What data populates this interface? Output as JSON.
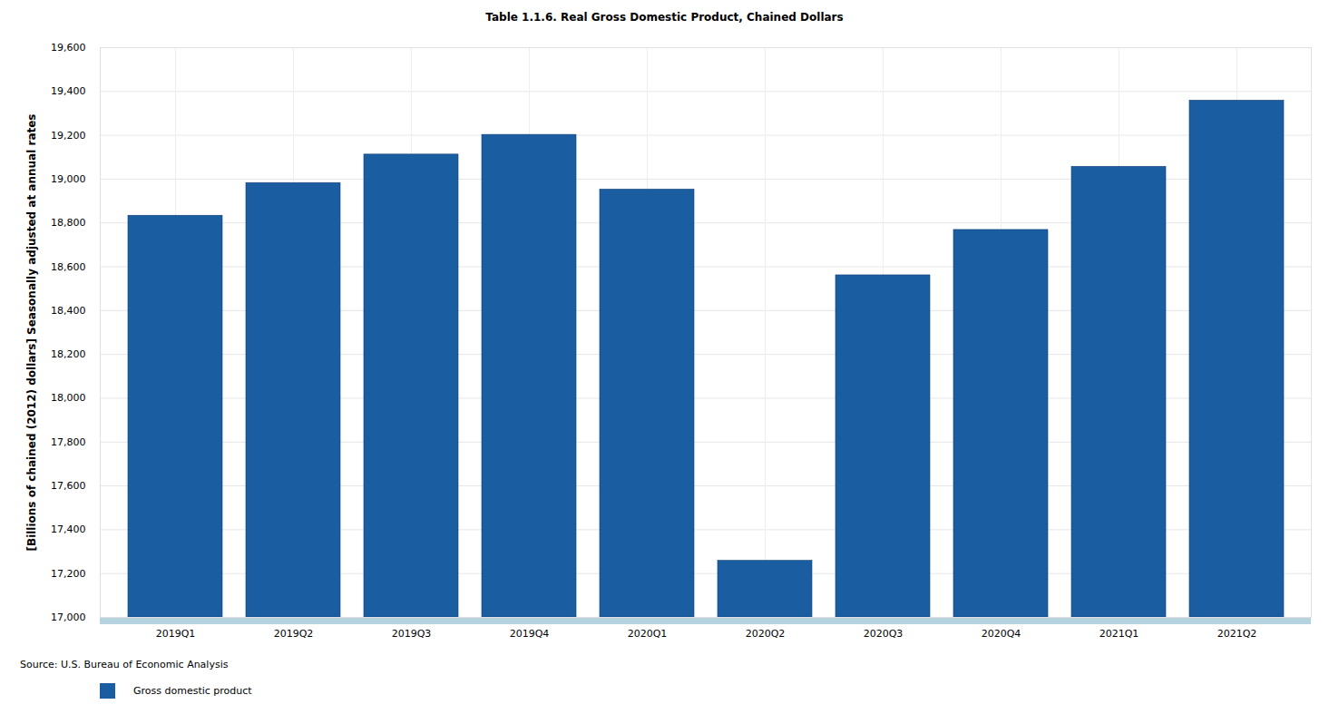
{
  "chart_data": {
    "type": "bar",
    "title": "Table 1.1.6. Real Gross Domestic Product, Chained Dollars",
    "y_label": "[Billions of chained (2012) dollars] Seasonally adjusted at annual rates",
    "source": "Source: U.S. Bureau of Economic Analysis",
    "categories": [
      "2019Q1",
      "2019Q2",
      "2019Q3",
      "2019Q4",
      "2020Q1",
      "2020Q2",
      "2020Q3",
      "2020Q4",
      "2021Q1",
      "2021Q2"
    ],
    "series": [
      {
        "name": "Gross domestic product",
        "color": "#1a5ea1",
        "values": [
          18833,
          18982,
          19112,
          19202,
          18952,
          17258,
          18561,
          18768,
          19056,
          19358
        ]
      }
    ],
    "ylim": [
      17000,
      19600
    ],
    "yticks": [
      {
        "value": 17000,
        "label": "17,000"
      },
      {
        "value": 17200,
        "label": "17,200"
      },
      {
        "value": 17400,
        "label": "17,400"
      },
      {
        "value": 17600,
        "label": "17,600"
      },
      {
        "value": 17800,
        "label": "17,800"
      },
      {
        "value": 18000,
        "label": "18,000"
      },
      {
        "value": 18200,
        "label": "18,200"
      },
      {
        "value": 18400,
        "label": "18,400"
      },
      {
        "value": 18600,
        "label": "18,600"
      },
      {
        "value": 18800,
        "label": "18,800"
      },
      {
        "value": 19000,
        "label": "19,000"
      },
      {
        "value": 19200,
        "label": "19,200"
      },
      {
        "value": 19400,
        "label": "19,400"
      },
      {
        "value": 19600,
        "label": "19,600"
      }
    ],
    "grid": true,
    "legend": "bottom-left"
  }
}
